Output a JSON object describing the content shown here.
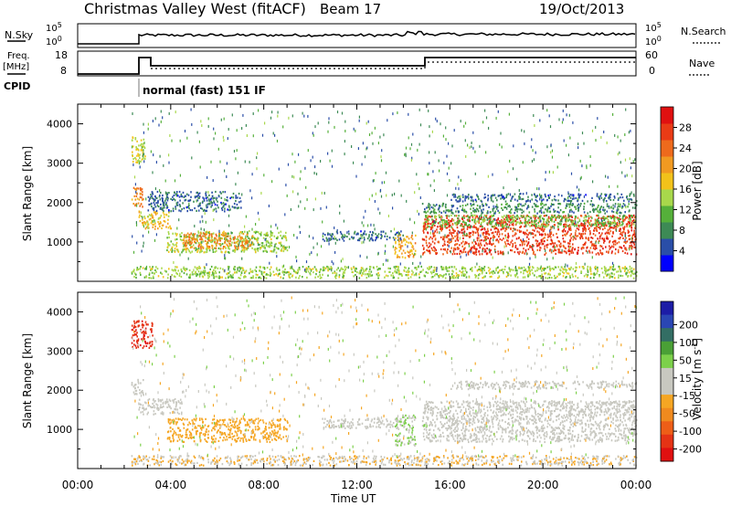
{
  "header": {
    "title": "Christmas Valley West (fitACF)",
    "beam": "Beam 17",
    "date": "19/Oct/2013"
  },
  "top_panels": {
    "nsky_label": "N.Sky",
    "nsky_ticks": [
      "10^5",
      "10^0"
    ],
    "nsearch_label": "N.Search",
    "nsearch_ticks": [
      "10^5",
      "10^0"
    ],
    "freq_label_1": "Freq.",
    "freq_label_2": "[MHz]",
    "freq_ticks": [
      "18",
      "8"
    ],
    "nave_label": "Nave",
    "nave_ticks": [
      "60",
      "0"
    ],
    "cpid_label": "CPID",
    "cpid_text": "normal (fast) 151 IF"
  },
  "colors": {
    "power_scale": [
      "#0000ff",
      "#2a4ea8",
      "#3d8a55",
      "#55b03a",
      "#a8d84b",
      "#f2c21a",
      "#f19a21",
      "#ee6a1c",
      "#e93b16",
      "#e01010"
    ],
    "velocity_scale": [
      "#1c1ca6",
      "#2a46b4",
      "#336e64",
      "#4aa036",
      "#7cd04a",
      "#c8c8c0",
      "#c8c8c0",
      "#f5a623",
      "#f08a1e",
      "#ee5e17",
      "#e53315",
      "#e01010"
    ]
  },
  "chart_data": [
    {
      "type": "heatmap",
      "name": "power",
      "ylabel": "Slant Range [km]",
      "y_ticks": [
        "1000",
        "2000",
        "3000",
        "4000"
      ],
      "ylim": [
        0,
        4500
      ],
      "xlim": [
        0,
        24
      ],
      "colorbar_label": "Power [dB]",
      "colorbar_ticks": [
        "4",
        "8",
        "12",
        "16",
        "20",
        "24",
        "28"
      ],
      "colorbar_range": [
        0,
        32
      ],
      "regions": [
        {
          "t0": 2.3,
          "t1": 2.9,
          "r0": 3000,
          "r1": 3700,
          "value": 16
        },
        {
          "t0": 2.3,
          "t1": 2.8,
          "r0": 1900,
          "r1": 2400,
          "value": 22
        },
        {
          "t0": 2.6,
          "t1": 4.0,
          "r0": 1350,
          "r1": 1800,
          "value": 18
        },
        {
          "t0": 3.8,
          "t1": 9.0,
          "r0": 750,
          "r1": 1300,
          "value": 14
        },
        {
          "t0": 4.5,
          "t1": 7.5,
          "r0": 850,
          "r1": 1250,
          "value": 22
        },
        {
          "t0": 3.0,
          "t1": 7.0,
          "r0": 1800,
          "r1": 2300,
          "value": 6
        },
        {
          "t0": 10.5,
          "t1": 14.0,
          "r0": 1050,
          "r1": 1300,
          "value": 6
        },
        {
          "t0": 13.6,
          "t1": 14.5,
          "r0": 600,
          "r1": 1200,
          "value": 20
        },
        {
          "t0": 14.8,
          "t1": 24.0,
          "r0": 700,
          "r1": 1700,
          "value": 27
        },
        {
          "t0": 14.8,
          "t1": 24.0,
          "r0": 1400,
          "r1": 1700,
          "value": 12
        },
        {
          "t0": 14.8,
          "t1": 24.0,
          "r0": 1750,
          "r1": 2000,
          "value": 8
        },
        {
          "t0": 16.0,
          "t1": 24.0,
          "r0": 2050,
          "r1": 2250,
          "value": 6
        },
        {
          "t0": 2.3,
          "t1": 24.0,
          "r0": 100,
          "r1": 400,
          "value": 14
        }
      ]
    },
    {
      "type": "heatmap",
      "name": "velocity",
      "ylabel": "Slant Range [km]",
      "y_ticks": [
        "1000",
        "2000",
        "3000",
        "4000"
      ],
      "ylim": [
        0,
        4500
      ],
      "xlim": [
        0,
        24
      ],
      "xlabel": "Time UT",
      "x_ticks": [
        "00:00",
        "04:00",
        "08:00",
        "12:00",
        "16:00",
        "20:00",
        "00:00"
      ],
      "colorbar_label": "Velocity [m s^-1]",
      "colorbar_ticks": [
        "200",
        "100",
        "50",
        "15",
        "-15",
        "-50",
        "-100",
        "-200"
      ],
      "colorbar_range": [
        -250,
        250
      ],
      "regions": [
        {
          "t0": 2.3,
          "t1": 3.2,
          "r0": 3100,
          "r1": 3800,
          "value": -200
        },
        {
          "t0": 2.3,
          "t1": 2.8,
          "r0": 1900,
          "r1": 2300,
          "value": 0
        },
        {
          "t0": 2.6,
          "t1": 4.5,
          "r0": 1400,
          "r1": 1800,
          "value": 0
        },
        {
          "t0": 3.8,
          "t1": 9.0,
          "r0": 700,
          "r1": 1300,
          "value": -60
        },
        {
          "t0": 10.5,
          "t1": 14.0,
          "r0": 1050,
          "r1": 1300,
          "value": 0
        },
        {
          "t0": 13.6,
          "t1": 14.5,
          "r0": 600,
          "r1": 1400,
          "value": 40
        },
        {
          "t0": 14.8,
          "t1": 24.0,
          "r0": 700,
          "r1": 1750,
          "value": 0
        },
        {
          "t0": 16.0,
          "t1": 24.0,
          "r0": 2050,
          "r1": 2250,
          "value": 0
        },
        {
          "t0": 2.3,
          "t1": 24.0,
          "r0": 100,
          "r1": 350,
          "value": -40
        }
      ]
    }
  ]
}
